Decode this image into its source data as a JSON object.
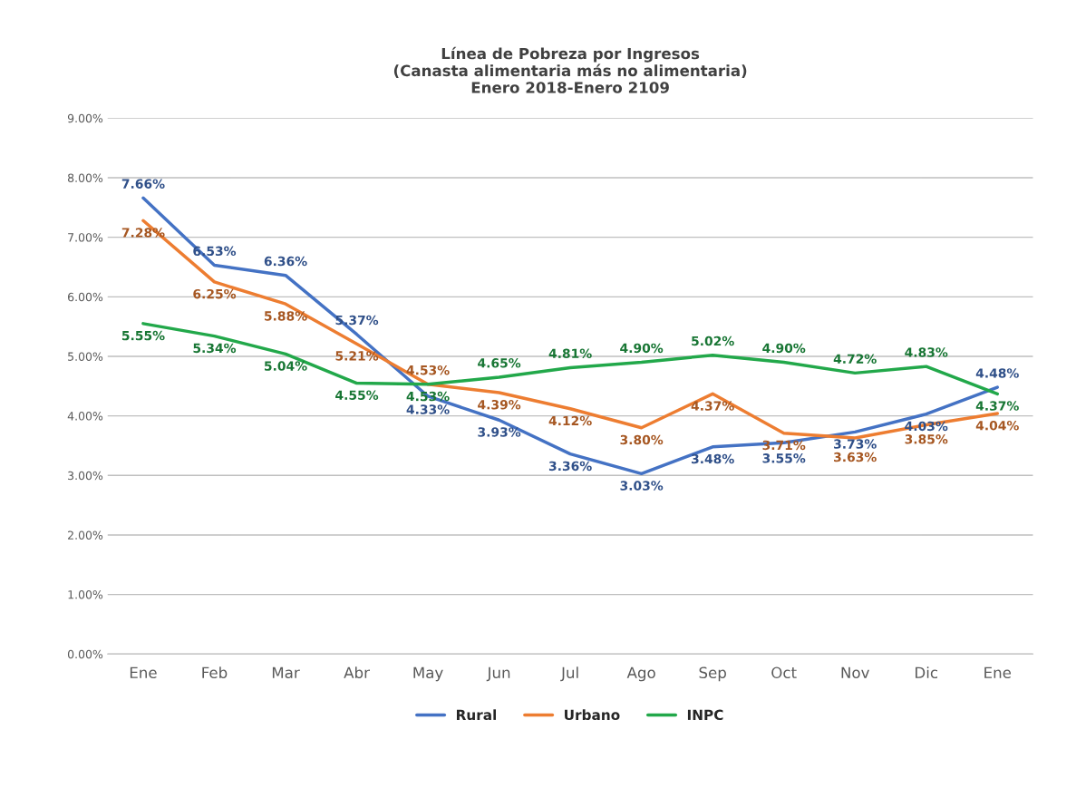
{
  "chart_data": {
    "type": "line",
    "title": "Línea de Pobreza por Ingresos\n(Canasta alimentaria más no alimentaria)\nEnero 2018-Enero 2109",
    "categories": [
      "Ene",
      "Feb",
      "Mar",
      "Abr",
      "May",
      "Jun",
      "Jul",
      "Ago",
      "Sep",
      "Oct",
      "Nov",
      "Dic",
      "Ene"
    ],
    "series": [
      {
        "name": "Rural",
        "color": "#4472c4",
        "values": [
          7.66,
          6.53,
          6.36,
          5.37,
          4.33,
          3.93,
          3.36,
          3.03,
          3.48,
          3.55,
          3.73,
          4.03,
          4.48
        ],
        "value_labels": [
          "7.66%",
          "6.53%",
          "6.36%",
          "5.37%",
          "4.33%",
          "3.93%",
          "3.36%",
          "3.03%",
          "3.48%",
          "3.55%",
          "3.73%",
          "4.03%",
          "4.48%"
        ]
      },
      {
        "name": "Urbano",
        "color": "#ed7d31",
        "values": [
          7.28,
          6.25,
          5.88,
          5.21,
          4.53,
          4.39,
          4.12,
          3.8,
          4.37,
          3.71,
          3.63,
          3.85,
          4.04
        ],
        "value_labels": [
          "7.28%",
          "6.25%",
          "5.88%",
          "5.21%",
          "4.53%",
          "4.39%",
          "4.12%",
          "3.80%",
          "4.37%",
          "3.71%",
          "3.63%",
          "3.85%",
          "4.04%"
        ]
      },
      {
        "name": "INPC",
        "color": "#22a84a",
        "values": [
          5.55,
          5.34,
          5.04,
          4.55,
          4.53,
          4.65,
          4.81,
          4.9,
          5.02,
          4.9,
          4.72,
          4.83,
          4.37
        ],
        "value_labels": [
          "5.55%",
          "5.34%",
          "5.04%",
          "4.55%",
          "4.53%",
          "4.65%",
          "4.81%",
          "4.90%",
          "5.02%",
          "4.90%",
          "4.72%",
          "4.83%",
          "4.37%"
        ]
      }
    ],
    "ylim": [
      0,
      9
    ],
    "yticks": [
      {
        "value": 0,
        "label": "0.00%"
      },
      {
        "value": 1,
        "label": "1.00%"
      },
      {
        "value": 2,
        "label": "2.00%"
      },
      {
        "value": 3,
        "label": "3.00%"
      },
      {
        "value": 4,
        "label": "4.00%"
      },
      {
        "value": 5,
        "label": "5.00%"
      },
      {
        "value": 6,
        "label": "6.00%"
      },
      {
        "value": 7,
        "label": "7.00%"
      },
      {
        "value": 8,
        "label": "8.00%"
      },
      {
        "value": 9,
        "label": "9.00%"
      }
    ],
    "grid": "y",
    "legend": "bottom",
    "marker": "none",
    "line_style": "solid"
  }
}
